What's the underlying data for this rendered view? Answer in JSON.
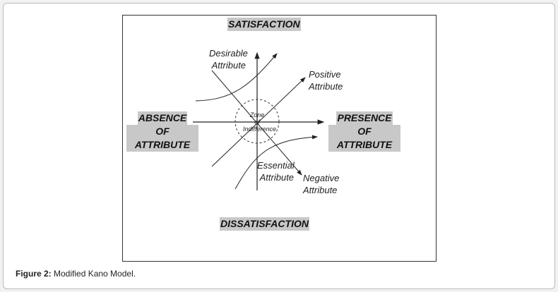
{
  "diagram": {
    "top": "SATISFACTION",
    "bottom": "DISSATISFACTION",
    "left": [
      "ABSENCE",
      "OF ATTRIBUTE"
    ],
    "right": [
      "PRESENCE",
      "OF ATTRIBUTE"
    ],
    "zone": [
      "Zone",
      "of",
      "Indifference"
    ],
    "curves": {
      "desirable": [
        "Desirable",
        "Attribute"
      ],
      "positive": [
        "Positive",
        "Attribute"
      ],
      "essential": [
        "Essential",
        "Attribute"
      ],
      "negative": [
        "Negative",
        "Attribute"
      ]
    }
  },
  "caption": {
    "label": "Figure 2:",
    "text": " Modified Kano Model."
  }
}
